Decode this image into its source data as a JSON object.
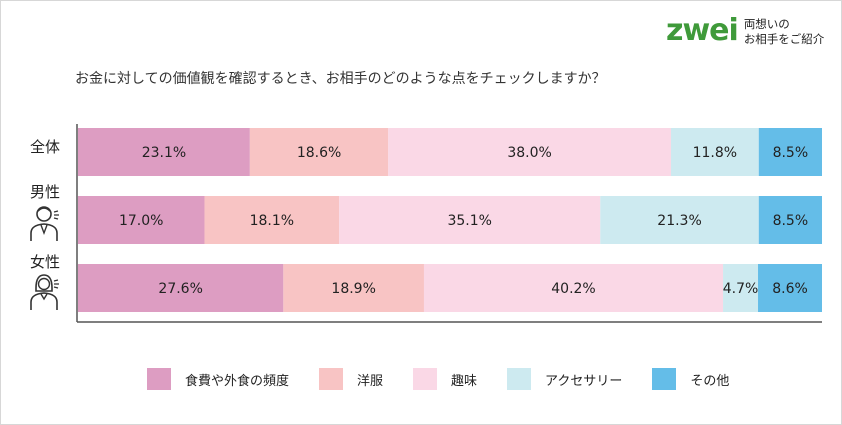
{
  "logo": {
    "mark": "zwei",
    "tagline_line1": "両想いの",
    "tagline_line2": "お相手をご紹介"
  },
  "chart_data": {
    "type": "bar",
    "orientation": "horizontal-stacked-100",
    "title": "お金に対しての価値観を確認するとき、お相手のどのような点をチェックしますか？",
    "categories": [
      "全体",
      "男性",
      "女性"
    ],
    "series": [
      {
        "name": "食費や外食の頻度",
        "color": "#dd9dc2",
        "values": [
          23.1,
          17.0,
          27.6
        ],
        "labels": [
          "23.1%",
          "17.0%",
          "27.6%"
        ]
      },
      {
        "name": "洋服",
        "color": "#f8c4c4",
        "values": [
          18.6,
          18.1,
          18.9
        ],
        "labels": [
          "18.6%",
          "18.1%",
          "18.9%"
        ]
      },
      {
        "name": "趣味",
        "color": "#fad8e6",
        "values": [
          38.0,
          35.1,
          40.2
        ],
        "labels": [
          "38.0%",
          "35.1%",
          "40.2%"
        ]
      },
      {
        "name": "アクセサリー",
        "color": "#cdeaf0",
        "values": [
          11.8,
          21.3,
          4.7
        ],
        "labels": [
          "11.8%",
          "21.3%",
          "4.7%"
        ]
      },
      {
        "name": "その他",
        "color": "#64bde8",
        "values": [
          8.5,
          8.5,
          8.6
        ],
        "labels": [
          "8.5%",
          "8.5%",
          "8.6%"
        ]
      }
    ],
    "xlim": [
      0,
      100
    ],
    "legend_position": "bottom",
    "grid": false
  },
  "icons": {
    "male": "man-icon",
    "female": "woman-icon"
  }
}
